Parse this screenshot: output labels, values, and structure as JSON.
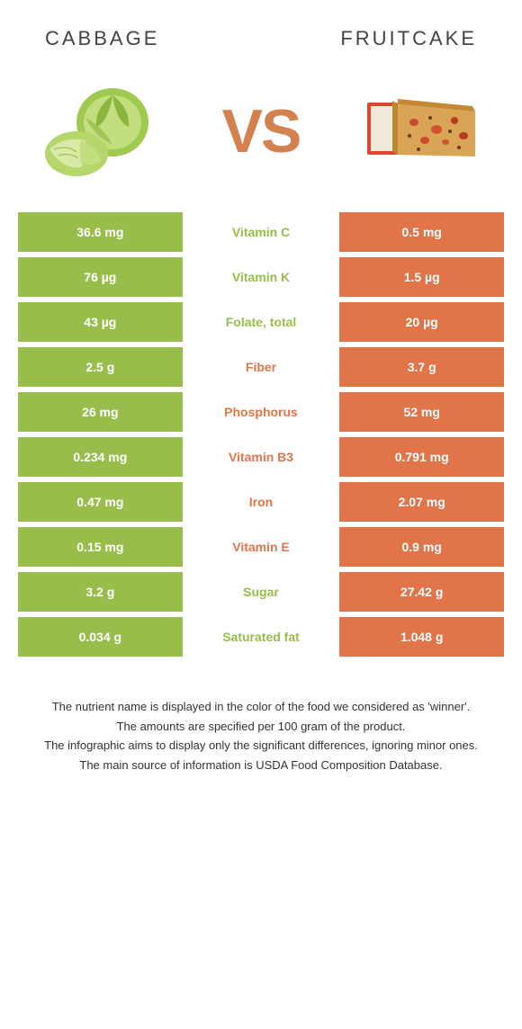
{
  "header": {
    "left": "CABBAGE",
    "right": "FRUITCAKE"
  },
  "vs": "VS",
  "colors": {
    "green": "#99bd4a",
    "orange": "#e2744a",
    "vs_color": "#d3824f",
    "bg": "#ffffff"
  },
  "rows": [
    {
      "left": "36.6 mg",
      "mid": "Vitamin C",
      "right": "0.5 mg",
      "winner": "green"
    },
    {
      "left": "76 µg",
      "mid": "Vitamin K",
      "right": "1.5 µg",
      "winner": "green"
    },
    {
      "left": "43 µg",
      "mid": "Folate, total",
      "right": "20 µg",
      "winner": "green"
    },
    {
      "left": "2.5 g",
      "mid": "Fiber",
      "right": "3.7 g",
      "winner": "orange"
    },
    {
      "left": "26 mg",
      "mid": "Phosphorus",
      "right": "52 mg",
      "winner": "orange"
    },
    {
      "left": "0.234 mg",
      "mid": "Vitamin B3",
      "right": "0.791 mg",
      "winner": "orange"
    },
    {
      "left": "0.47 mg",
      "mid": "Iron",
      "right": "2.07 mg",
      "winner": "orange"
    },
    {
      "left": "0.15 mg",
      "mid": "Vitamin E",
      "right": "0.9 mg",
      "winner": "orange"
    },
    {
      "left": "3.2 g",
      "mid": "Sugar",
      "right": "27.42 g",
      "winner": "green"
    },
    {
      "left": "0.034 g",
      "mid": "Saturated fat",
      "right": "1.048 g",
      "winner": "green"
    }
  ],
  "footnotes": [
    "The nutrient name is displayed in the color of the food we considered as 'winner'.",
    "The amounts are specified per 100 gram of the product.",
    "The infographic aims to display only the significant differences, ignoring minor ones.",
    "The main source of information is USDA Food Composition Database."
  ]
}
